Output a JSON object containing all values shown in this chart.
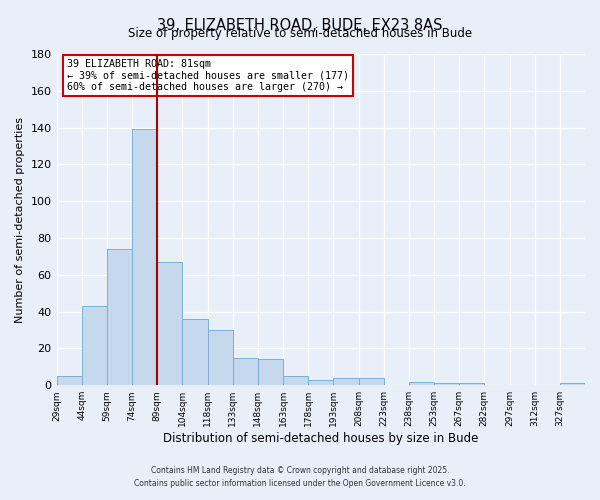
{
  "title": "39, ELIZABETH ROAD, BUDE, EX23 8AS",
  "subtitle": "Size of property relative to semi-detached houses in Bude",
  "xlabel": "Distribution of semi-detached houses by size in Bude",
  "ylabel": "Number of semi-detached properties",
  "bar_values": [
    5,
    43,
    74,
    139,
    67,
    36,
    30,
    15,
    14,
    5,
    3,
    4,
    4,
    0,
    2,
    1,
    1,
    0,
    0,
    0,
    1
  ],
  "bin_labels": [
    "29sqm",
    "44sqm",
    "59sqm",
    "74sqm",
    "89sqm",
    "104sqm",
    "118sqm",
    "133sqm",
    "148sqm",
    "163sqm",
    "178sqm",
    "193sqm",
    "208sqm",
    "223sqm",
    "238sqm",
    "253sqm",
    "267sqm",
    "282sqm",
    "297sqm",
    "312sqm",
    "327sqm"
  ],
  "bar_color": "#c6d9ec",
  "bar_edge_color": "#7aafd4",
  "vline_x_index": 4,
  "vline_color": "#aa0000",
  "annotation_title": "39 ELIZABETH ROAD: 81sqm",
  "annotation_line1": "← 39% of semi-detached houses are smaller (177)",
  "annotation_line2": "60% of semi-detached houses are larger (270) →",
  "annotation_box_color": "#ffffff",
  "annotation_box_edge_color": "#cc0000",
  "ylim": [
    0,
    180
  ],
  "yticks": [
    0,
    20,
    40,
    60,
    80,
    100,
    120,
    140,
    160,
    180
  ],
  "footer1": "Contains HM Land Registry data © Crown copyright and database right 2025.",
  "footer2": "Contains public sector information licensed under the Open Government Licence v3.0.",
  "bg_color": "#e8eff8",
  "plot_bg_color": "#e8eff8"
}
